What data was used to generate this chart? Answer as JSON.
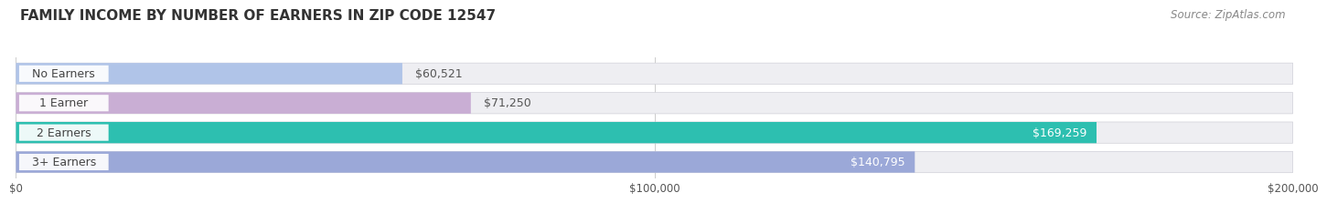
{
  "title": "FAMILY INCOME BY NUMBER OF EARNERS IN ZIP CODE 12547",
  "source": "Source: ZipAtlas.com",
  "categories": [
    "No Earners",
    "1 Earner",
    "2 Earners",
    "3+ Earners"
  ],
  "values": [
    60521,
    71250,
    169259,
    140795
  ],
  "bar_colors": [
    "#b0c4e8",
    "#c9aed4",
    "#2dbfb0",
    "#9ba8d8"
  ],
  "label_colors": [
    "#555555",
    "#555555",
    "#ffffff",
    "#ffffff"
  ],
  "xlim": [
    0,
    200000
  ],
  "xtick_values": [
    0,
    100000,
    200000
  ],
  "xtick_labels": [
    "$0",
    "$100,000",
    "$200,000"
  ],
  "bg_color": "#ffffff",
  "bar_bg_color": "#eeeef2",
  "title_fontsize": 11,
  "source_fontsize": 8.5,
  "label_fontsize": 9,
  "category_fontsize": 9
}
